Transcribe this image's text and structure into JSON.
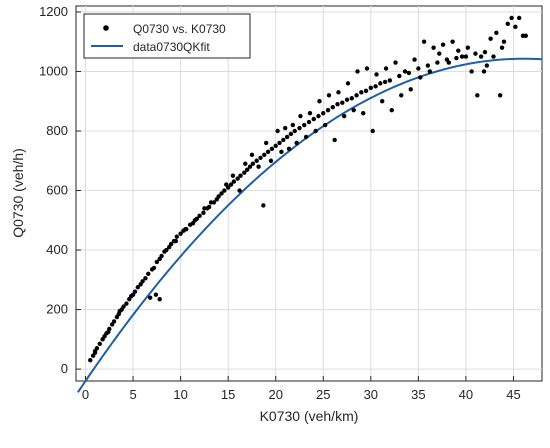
{
  "chart_data": {
    "type": "scatter",
    "title": "",
    "xlabel": "K0730 (veh/km)",
    "ylabel": "Q0730 (veh/h)",
    "xlim": [
      -1,
      48
    ],
    "ylim": [
      -40,
      1220
    ],
    "xticks": [
      0,
      5,
      10,
      15,
      20,
      25,
      30,
      35,
      40,
      45
    ],
    "yticks": [
      0,
      200,
      400,
      600,
      800,
      1000,
      1200
    ],
    "grid": true,
    "legend_position": "top-left",
    "series": [
      {
        "name": "Q0730 vs. K0730",
        "kind": "scatter",
        "color": "#000000",
        "points": [
          [
            0.5,
            30
          ],
          [
            0.8,
            45
          ],
          [
            1.0,
            60
          ],
          [
            1.2,
            70
          ],
          [
            1.5,
            85
          ],
          [
            1.8,
            100
          ],
          [
            2.0,
            110
          ],
          [
            2.2,
            120
          ],
          [
            2.5,
            135
          ],
          [
            2.8,
            150
          ],
          [
            3.0,
            160
          ],
          [
            3.3,
            175
          ],
          [
            3.5,
            185
          ],
          [
            3.8,
            200
          ],
          [
            4.0,
            210
          ],
          [
            4.3,
            220
          ],
          [
            4.6,
            235
          ],
          [
            5.0,
            250
          ],
          [
            5.2,
            260
          ],
          [
            5.5,
            275
          ],
          [
            5.8,
            285
          ],
          [
            6.0,
            295
          ],
          [
            6.3,
            305
          ],
          [
            6.6,
            320
          ],
          [
            7.0,
            335
          ],
          [
            7.2,
            340
          ],
          [
            7.5,
            360
          ],
          [
            7.8,
            370
          ],
          [
            8.0,
            380
          ],
          [
            8.3,
            395
          ],
          [
            8.5,
            400
          ],
          [
            8.8,
            410
          ],
          [
            9.0,
            420
          ],
          [
            9.3,
            430
          ],
          [
            9.6,
            445
          ],
          [
            10.0,
            455
          ],
          [
            10.3,
            465
          ],
          [
            10.6,
            470
          ],
          [
            11.0,
            485
          ],
          [
            11.3,
            490
          ],
          [
            11.7,
            505
          ],
          [
            12.0,
            515
          ],
          [
            12.4,
            525
          ],
          [
            12.8,
            540
          ],
          [
            13.0,
            545
          ],
          [
            13.5,
            560
          ],
          [
            13.8,
            570
          ],
          [
            14.0,
            580
          ],
          [
            14.3,
            590
          ],
          [
            14.6,
            600
          ],
          [
            15.0,
            610
          ],
          [
            15.3,
            620
          ],
          [
            15.6,
            630
          ],
          [
            16.0,
            640
          ],
          [
            16.3,
            650
          ],
          [
            16.7,
            660
          ],
          [
            17.0,
            670
          ],
          [
            17.3,
            680
          ],
          [
            17.6,
            690
          ],
          [
            18.0,
            700
          ],
          [
            18.4,
            710
          ],
          [
            18.8,
            720
          ],
          [
            19.2,
            730
          ],
          [
            19.6,
            740
          ],
          [
            20.0,
            750
          ],
          [
            20.4,
            760
          ],
          [
            20.8,
            770
          ],
          [
            21.2,
            780
          ],
          [
            21.6,
            790
          ],
          [
            22.0,
            800
          ],
          [
            22.5,
            810
          ],
          [
            23.0,
            820
          ],
          [
            23.5,
            830
          ],
          [
            24.0,
            840
          ],
          [
            24.5,
            850
          ],
          [
            25.0,
            860
          ],
          [
            25.5,
            870
          ],
          [
            26.0,
            880
          ],
          [
            26.5,
            890
          ],
          [
            27.0,
            895
          ],
          [
            27.5,
            905
          ],
          [
            28.0,
            910
          ],
          [
            28.5,
            920
          ],
          [
            29.0,
            930
          ],
          [
            29.5,
            935
          ],
          [
            30.0,
            945
          ],
          [
            30.5,
            950
          ],
          [
            31.0,
            960
          ],
          [
            31.5,
            965
          ],
          [
            32.0,
            970
          ],
          [
            33.0,
            985
          ],
          [
            34.0,
            995
          ],
          [
            35.0,
            1010
          ],
          [
            36.0,
            1020
          ],
          [
            37.0,
            1030
          ],
          [
            38.0,
            1040
          ],
          [
            39.0,
            1045
          ],
          [
            40.0,
            1050
          ],
          [
            41.0,
            1060
          ],
          [
            42.0,
            1065
          ],
          [
            1.0,
            55
          ],
          [
            2.4,
            125
          ],
          [
            3.6,
            195
          ],
          [
            4.8,
            245
          ],
          [
            6.8,
            240
          ],
          [
            7.4,
            250
          ],
          [
            7.8,
            235
          ],
          [
            9.5,
            430
          ],
          [
            10.5,
            470
          ],
          [
            11.5,
            500
          ],
          [
            12.5,
            540
          ],
          [
            13.2,
            560
          ],
          [
            14.8,
            620
          ],
          [
            15.5,
            650
          ],
          [
            16.2,
            600
          ],
          [
            16.8,
            690
          ],
          [
            17.5,
            720
          ],
          [
            18.2,
            680
          ],
          [
            18.7,
            550
          ],
          [
            19.0,
            760
          ],
          [
            19.5,
            700
          ],
          [
            20.2,
            800
          ],
          [
            20.6,
            730
          ],
          [
            21.0,
            810
          ],
          [
            21.4,
            740
          ],
          [
            21.8,
            820
          ],
          [
            22.2,
            760
          ],
          [
            22.6,
            850
          ],
          [
            23.2,
            780
          ],
          [
            23.6,
            860
          ],
          [
            24.2,
            800
          ],
          [
            24.6,
            900
          ],
          [
            25.2,
            820
          ],
          [
            25.6,
            920
          ],
          [
            26.2,
            770
          ],
          [
            26.6,
            930
          ],
          [
            27.2,
            850
          ],
          [
            27.6,
            960
          ],
          [
            28.2,
            870
          ],
          [
            28.6,
            1000
          ],
          [
            29.2,
            860
          ],
          [
            29.6,
            1010
          ],
          [
            30.2,
            800
          ],
          [
            30.6,
            990
          ],
          [
            31.2,
            900
          ],
          [
            31.6,
            1010
          ],
          [
            32.2,
            870
          ],
          [
            32.6,
            1030
          ],
          [
            33.2,
            920
          ],
          [
            33.6,
            1000
          ],
          [
            34.2,
            940
          ],
          [
            34.6,
            1040
          ],
          [
            35.2,
            980
          ],
          [
            35.6,
            1100
          ],
          [
            36.2,
            1000
          ],
          [
            36.6,
            1080
          ],
          [
            37.2,
            1060
          ],
          [
            37.6,
            1090
          ],
          [
            38.2,
            1030
          ],
          [
            38.6,
            1100
          ],
          [
            39.2,
            1070
          ],
          [
            39.6,
            1050
          ],
          [
            40.2,
            1080
          ],
          [
            40.6,
            1000
          ],
          [
            41.2,
            920
          ],
          [
            41.6,
            1050
          ],
          [
            42.2,
            1020
          ],
          [
            42.6,
            1110
          ],
          [
            43.2,
            1130
          ],
          [
            43.6,
            920
          ],
          [
            44.0,
            1100
          ],
          [
            44.4,
            1160
          ],
          [
            44.8,
            1180
          ],
          [
            45.2,
            1150
          ],
          [
            45.6,
            1180
          ],
          [
            46.0,
            1120
          ],
          [
            46.3,
            1120
          ],
          [
            43.8,
            1080
          ],
          [
            42.9,
            1050
          ],
          [
            41.9,
            1000
          ]
        ]
      },
      {
        "name": "data0730QKfit",
        "kind": "line",
        "color": "#1f5fa5",
        "equation": {
          "a": 47.0,
          "b": -0.51,
          "c": -40.0,
          "x_start": -0.8,
          "x_end": 48.0
        }
      }
    ]
  }
}
